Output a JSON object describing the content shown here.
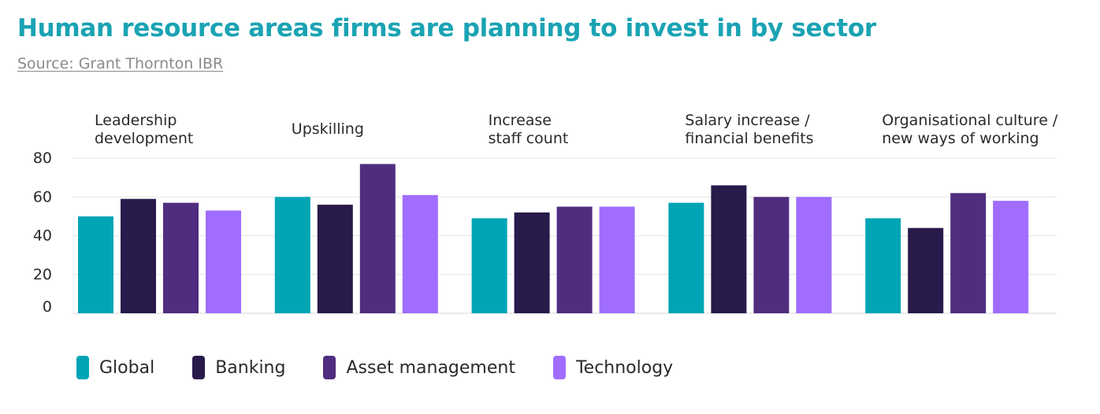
{
  "header": {
    "title": "Human resource areas firms are planning to invest in by sector",
    "source": "Source: Grant Thornton IBR"
  },
  "chart_data": {
    "type": "bar",
    "title": "Human resource areas firms are planning to invest in by sector",
    "xlabel": "",
    "ylabel": "",
    "ylim": [
      0,
      80
    ],
    "yticks": [
      "0",
      "20",
      "40",
      "60",
      "80"
    ],
    "grid": true,
    "legend_position": "bottom-left",
    "categories": [
      [
        "Leadership",
        "development"
      ],
      [
        "Upskilling"
      ],
      [
        "Increase",
        "staff count"
      ],
      [
        "Salary increase /",
        "financial benefits"
      ],
      [
        "Organisational culture /",
        "new ways of working"
      ]
    ],
    "series": [
      {
        "name": "Global",
        "color": "#00a5b5",
        "values": [
          50,
          60,
          49,
          57,
          49
        ]
      },
      {
        "name": "Banking",
        "color": "#281a4b",
        "values": [
          59,
          56,
          52,
          66,
          44
        ]
      },
      {
        "name": "Asset management",
        "color": "#4f2d7f",
        "values": [
          57,
          77,
          55,
          60,
          62
        ]
      },
      {
        "name": "Technology",
        "color": "#a06dff",
        "values": [
          53,
          61,
          55,
          60,
          58
        ]
      }
    ]
  }
}
